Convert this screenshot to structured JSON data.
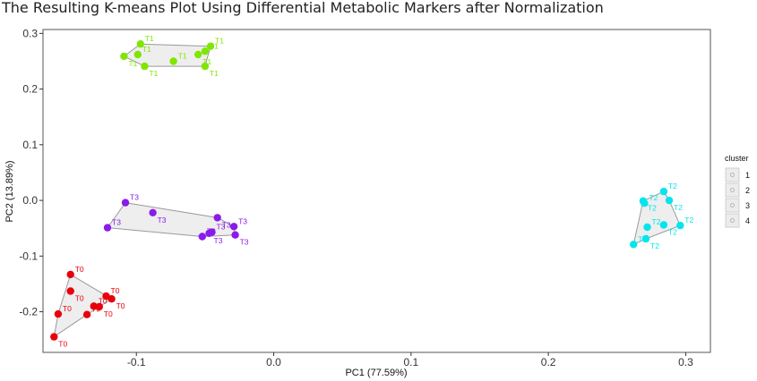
{
  "chart_data": {
    "type": "scatter",
    "title": "The Resulting K-means Plot Using Differential Metabolic Markers after Normalization",
    "xlabel": "PC1 (77.59%)",
    "ylabel": "PC2 (13.89%)",
    "xlim": [
      -0.168,
      0.318
    ],
    "ylim": [
      -0.273,
      0.307
    ],
    "x_ticks": [
      -0.1,
      0.0,
      0.1,
      0.2,
      0.3
    ],
    "x_tick_labels": [
      "-0.1",
      "0.0",
      "0.1",
      "0.2",
      "0.3"
    ],
    "y_ticks": [
      -0.2,
      -0.1,
      0.0,
      0.1,
      0.2,
      0.3
    ],
    "y_tick_labels": [
      "-0.2",
      "-0.1",
      "0.0",
      "0.1",
      "0.2",
      "0.3"
    ],
    "grid": false,
    "legend": {
      "title": "cluster",
      "position": "right",
      "entries": [
        "1",
        "2",
        "3",
        "4"
      ]
    },
    "series": [
      {
        "label": "T0",
        "color": "#e8000b",
        "points": [
          [
            -0.148,
            -0.133
          ],
          [
            -0.148,
            -0.163
          ],
          [
            -0.157,
            -0.204
          ],
          [
            -0.16,
            -0.245
          ],
          [
            -0.122,
            -0.172
          ],
          [
            -0.118,
            -0.177
          ],
          [
            -0.131,
            -0.19
          ],
          [
            -0.127,
            -0.191
          ],
          [
            -0.136,
            -0.205
          ]
        ],
        "hull": [
          [
            -0.148,
            -0.133
          ],
          [
            -0.118,
            -0.177
          ],
          [
            -0.127,
            -0.191
          ],
          [
            -0.136,
            -0.205
          ],
          [
            -0.16,
            -0.245
          ],
          [
            -0.157,
            -0.204
          ]
        ]
      },
      {
        "label": "T1",
        "color": "#7fe600",
        "points": [
          [
            -0.097,
            0.281
          ],
          [
            -0.109,
            0.259
          ],
          [
            -0.099,
            0.262
          ],
          [
            -0.094,
            0.241
          ],
          [
            -0.073,
            0.25
          ],
          [
            -0.055,
            0.262
          ],
          [
            -0.05,
            0.268
          ],
          [
            -0.05,
            0.241
          ],
          [
            -0.046,
            0.277
          ]
        ],
        "hull": [
          [
            -0.097,
            0.281
          ],
          [
            -0.046,
            0.277
          ],
          [
            -0.05,
            0.241
          ],
          [
            -0.094,
            0.241
          ],
          [
            -0.109,
            0.259
          ]
        ]
      },
      {
        "label": "T2",
        "color": "#00e6ee",
        "points": [
          [
            0.284,
            0.016
          ],
          [
            0.269,
            -0.001
          ],
          [
            0.27,
            -0.005
          ],
          [
            0.288,
            0.0
          ],
          [
            0.296,
            -0.045
          ],
          [
            0.284,
            -0.044
          ],
          [
            0.272,
            -0.048
          ],
          [
            0.271,
            -0.069
          ],
          [
            0.262,
            -0.079
          ]
        ],
        "hull": [
          [
            0.269,
            -0.001
          ],
          [
            0.284,
            0.016
          ],
          [
            0.288,
            0.0
          ],
          [
            0.296,
            -0.045
          ],
          [
            0.271,
            -0.069
          ],
          [
            0.262,
            -0.079
          ]
        ]
      },
      {
        "label": "T3",
        "color": "#8a1bea",
        "points": [
          [
            -0.108,
            -0.004
          ],
          [
            -0.088,
            -0.022
          ],
          [
            -0.121,
            -0.049
          ],
          [
            -0.041,
            -0.031
          ],
          [
            -0.029,
            -0.047
          ],
          [
            -0.028,
            -0.062
          ],
          [
            -0.045,
            -0.057
          ],
          [
            -0.047,
            -0.059
          ],
          [
            -0.052,
            -0.065
          ]
        ],
        "hull": [
          [
            -0.108,
            -0.004
          ],
          [
            -0.041,
            -0.031
          ],
          [
            -0.029,
            -0.047
          ],
          [
            -0.028,
            -0.062
          ],
          [
            -0.052,
            -0.065
          ],
          [
            -0.121,
            -0.049
          ]
        ]
      }
    ]
  }
}
